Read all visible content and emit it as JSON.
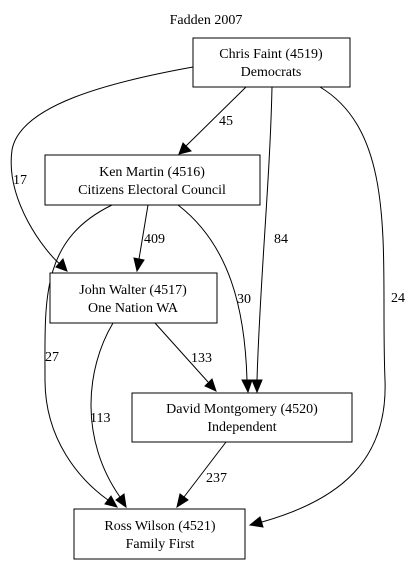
{
  "title": "Fadden 2007",
  "nodes": [
    {
      "id": "n4519",
      "line1": "Chris Faint (4519)",
      "line2": "Democrats"
    },
    {
      "id": "n4516",
      "line1": "Ken Martin (4516)",
      "line2": "Citizens Electoral Council"
    },
    {
      "id": "n4517",
      "line1": "John Walter (4517)",
      "line2": "One Nation WA"
    },
    {
      "id": "n4520",
      "line1": "David Montgomery (4520)",
      "line2": "Independent"
    },
    {
      "id": "n4521",
      "line1": "Ross Wilson (4521)",
      "line2": "Family First"
    }
  ],
  "edges": [
    {
      "from": "n4519",
      "to": "n4516",
      "label": "45"
    },
    {
      "from": "n4519",
      "to": "n4517",
      "label": "17"
    },
    {
      "from": "n4519",
      "to": "n4520",
      "label": "84"
    },
    {
      "from": "n4519",
      "to": "n4521",
      "label": "24"
    },
    {
      "from": "n4516",
      "to": "n4517",
      "label": "409"
    },
    {
      "from": "n4516",
      "to": "n4520",
      "label": "30"
    },
    {
      "from": "n4516",
      "to": "n4521",
      "label": "27"
    },
    {
      "from": "n4517",
      "to": "n4520",
      "label": "133"
    },
    {
      "from": "n4517",
      "to": "n4521",
      "label": "113"
    },
    {
      "from": "n4520",
      "to": "n4521",
      "label": "237"
    }
  ]
}
